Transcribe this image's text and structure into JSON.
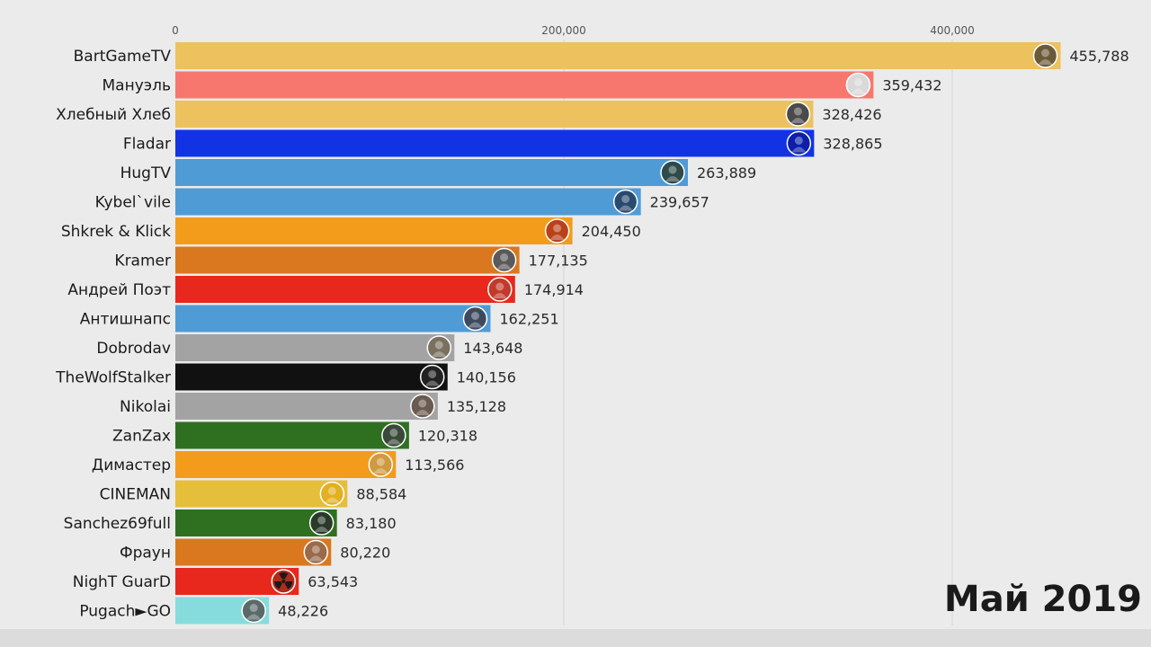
{
  "chart_data": {
    "type": "bar",
    "orientation": "horizontal",
    "period": "Май 2019",
    "xlim": [
      0,
      456000
    ],
    "x_ticks": [
      {
        "value": 0,
        "label": "0"
      },
      {
        "value": 200000,
        "label": "200,000"
      },
      {
        "value": 400000,
        "label": "400,000"
      }
    ],
    "grid": true,
    "categories": [
      "BartGameTV",
      "Мануэль",
      "Хлебный Хлеб",
      "Fladar",
      "HugTV",
      "Kybel`vile",
      "Shkrek & Klick",
      "Kramer",
      "Андрей Поэт",
      "Антишнапс",
      "Dobrodav",
      "TheWolfStalker",
      "Nikolai",
      "ZanZax",
      "Димастер",
      "CINEMAN",
      "Sanchez69full",
      "Фраун",
      "NighT GuarD",
      "Pugach►GO"
    ],
    "values": [
      455788,
      359432,
      328426,
      328865,
      263889,
      239657,
      204450,
      177135,
      174914,
      162251,
      143648,
      140156,
      135128,
      120318,
      113566,
      88584,
      83180,
      80220,
      63543,
      48226
    ],
    "value_labels": [
      "455,788",
      "359,432",
      "328,426",
      "328,865",
      "263,889",
      "239,657",
      "204,450",
      "177,135",
      "174,914",
      "162,251",
      "143,648",
      "140,156",
      "135,128",
      "120,318",
      "113,566",
      "88,584",
      "83,180",
      "80,220",
      "63,543",
      "48,226"
    ],
    "colors": [
      "#ecc15e",
      "#f7776e",
      "#ecc15e",
      "#1233e4",
      "#4f9bd6",
      "#4f9bd6",
      "#f39c1b",
      "#d9781f",
      "#e8281d",
      "#4f9bd6",
      "#a3a3a3",
      "#111111",
      "#a3a3a3",
      "#2e7020",
      "#f39c1b",
      "#e5be3b",
      "#2e7020",
      "#d9781f",
      "#e8281d",
      "#86dcdc"
    ],
    "avatar_colors": [
      "#6b5a3a",
      "#d9d9d9",
      "#4a4a4a",
      "#0b1fa8",
      "#2f4a4a",
      "#2a4a70",
      "#b8421a",
      "#5a5a5a",
      "#c33a2a",
      "#3d4a5c",
      "#7a7060",
      "#222222",
      "#6a5a50",
      "#3a4a3a",
      "#d09a40",
      "#e2b020",
      "#2a3a2a",
      "#9a6a4a",
      "#b22a1a",
      "#5a6a6a"
    ],
    "avatar_icons": [
      "avatar-icon",
      "avatar-icon",
      "avatar-icon",
      "avatar-icon",
      "avatar-icon",
      "avatar-icon",
      "avatar-icon",
      "avatar-icon",
      "avatar-icon",
      "avatar-icon",
      "avatar-icon",
      "avatar-icon",
      "avatar-icon",
      "avatar-icon",
      "avatar-icon",
      "avatar-icon",
      "avatar-icon",
      "avatar-icon",
      "radiation-icon",
      "avatar-icon"
    ]
  }
}
